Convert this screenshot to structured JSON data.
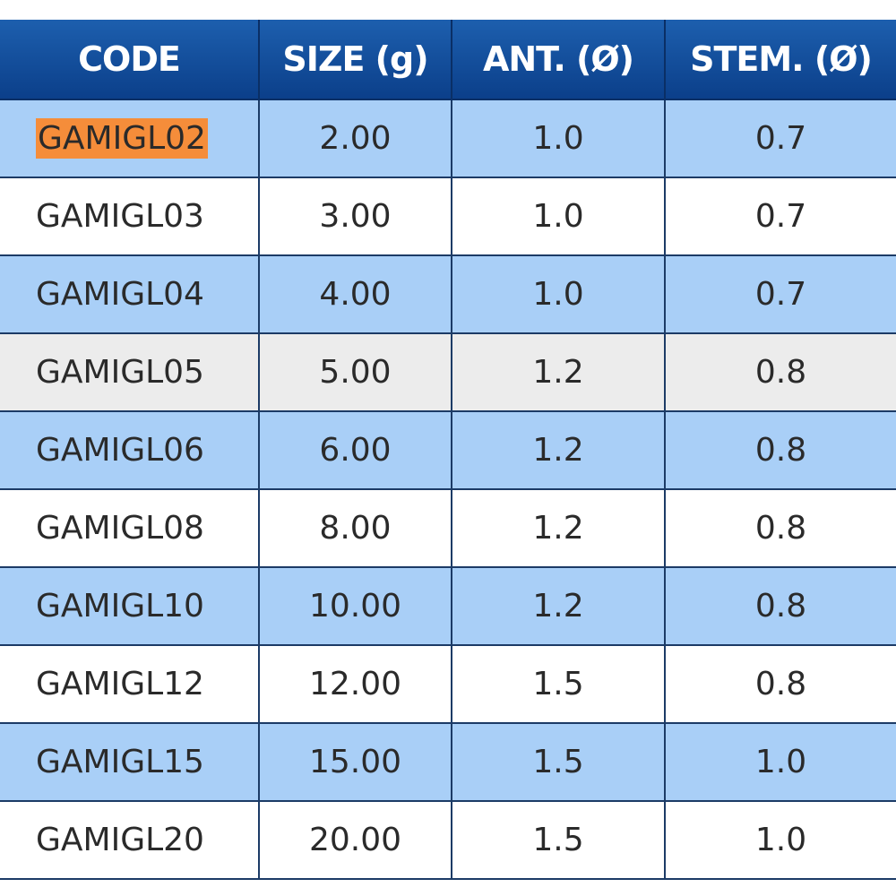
{
  "table": {
    "headers": [
      "CODE",
      "SIZE (g)",
      "ANT. (Ø)",
      "STEM. (Ø)"
    ],
    "rows": [
      {
        "code": "GAMIGL02",
        "size": "2.00",
        "ant": "1.0",
        "stem": "0.7",
        "style": "blue",
        "highlighted": true
      },
      {
        "code": "GAMIGL03",
        "size": "3.00",
        "ant": "1.0",
        "stem": "0.7",
        "style": "white"
      },
      {
        "code": "GAMIGL04",
        "size": "4.00",
        "ant": "1.0",
        "stem": "0.7",
        "style": "blue"
      },
      {
        "code": "GAMIGL05",
        "size": "5.00",
        "ant": "1.2",
        "stem": "0.8",
        "style": "grey"
      },
      {
        "code": "GAMIGL06",
        "size": "6.00",
        "ant": "1.2",
        "stem": "0.8",
        "style": "blue"
      },
      {
        "code": "GAMIGL08",
        "size": "8.00",
        "ant": "1.2",
        "stem": "0.8",
        "style": "white"
      },
      {
        "code": "GAMIGL10",
        "size": "10.00",
        "ant": "1.2",
        "stem": "0.8",
        "style": "blue"
      },
      {
        "code": "GAMIGL12",
        "size": "12.00",
        "ant": "1.5",
        "stem": "0.8",
        "style": "white"
      },
      {
        "code": "GAMIGL15",
        "size": "15.00",
        "ant": "1.5",
        "stem": "1.0",
        "style": "blue"
      },
      {
        "code": "GAMIGL20",
        "size": "20.00",
        "ant": "1.5",
        "stem": "1.0",
        "style": "white"
      }
    ]
  },
  "colors": {
    "header": "#0b3f8a",
    "row_blue": "#a9cff7",
    "row_grey": "#ececec",
    "highlight": "#f58d3a"
  }
}
